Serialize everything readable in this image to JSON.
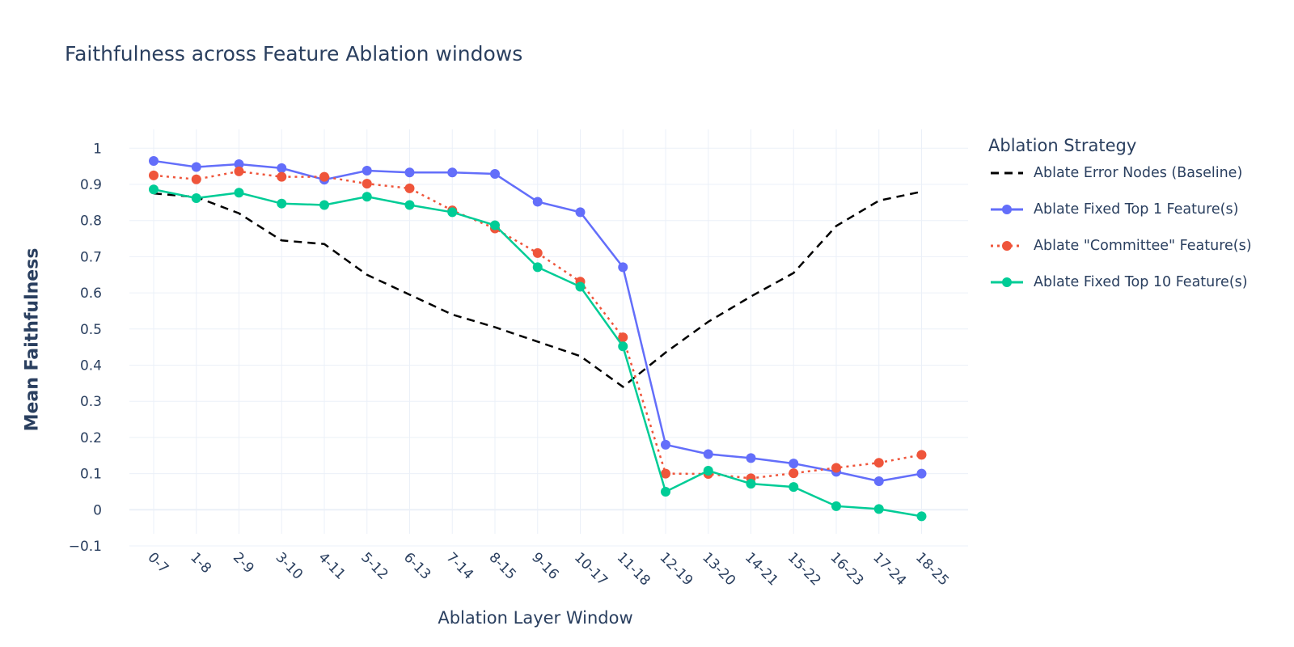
{
  "chart_data": {
    "type": "line",
    "title": "Faithfulness across Feature Ablation windows",
    "xlabel": "Ablation Layer Window",
    "ylabel": "Mean Faithfulness",
    "ylim": [
      -0.1,
      1.03
    ],
    "yticks": [
      -0.1,
      0,
      0.1,
      0.2,
      0.3,
      0.4,
      0.5,
      0.6,
      0.7,
      0.8,
      0.9,
      1
    ],
    "grid": true,
    "legend_title": "Ablation Strategy",
    "legend_position": "right",
    "categories": [
      "0-7",
      "1-8",
      "2-9",
      "3-10",
      "4-11",
      "5-12",
      "6-13",
      "7-14",
      "8-15",
      "9-16",
      "10-17",
      "11-18",
      "12-19",
      "13-20",
      "14-21",
      "15-22",
      "16-23",
      "17-24",
      "18-25"
    ],
    "series": [
      {
        "name": "Ablate Error Nodes (Baseline)",
        "color": "#000000",
        "dash": "dash",
        "markers": false,
        "values": [
          0.875,
          0.865,
          0.82,
          0.745,
          0.735,
          0.65,
          0.595,
          0.54,
          0.505,
          0.465,
          0.425,
          0.34,
          0.435,
          0.52,
          0.59,
          0.655,
          0.785,
          0.855,
          0.88
        ]
      },
      {
        "name": "Ablate Fixed Top 1 Feature(s)",
        "color": "#636efa",
        "dash": "solid",
        "markers": true,
        "values": [
          0.965,
          0.948,
          0.956,
          0.945,
          0.913,
          0.938,
          0.933,
          0.933,
          0.929,
          0.852,
          0.823,
          0.671,
          0.18,
          0.154,
          0.143,
          0.128,
          0.105,
          0.079,
          0.1
        ]
      },
      {
        "name": "Ablate \"Committee\" Feature(s)",
        "color": "#ef553b",
        "dash": "dot",
        "markers": true,
        "values": [
          0.925,
          0.914,
          0.936,
          0.921,
          0.921,
          0.902,
          0.889,
          0.828,
          0.778,
          0.71,
          0.631,
          0.477,
          0.1,
          0.099,
          0.087,
          0.101,
          0.116,
          0.13,
          0.152
        ]
      },
      {
        "name": "Ablate Fixed Top 10 Feature(s)",
        "color": "#00cc96",
        "dash": "solid",
        "markers": true,
        "values": [
          0.886,
          0.862,
          0.877,
          0.847,
          0.843,
          0.866,
          0.843,
          0.823,
          0.787,
          0.671,
          0.617,
          0.452,
          0.05,
          0.108,
          0.072,
          0.063,
          0.01,
          0.002,
          -0.018
        ]
      }
    ]
  }
}
